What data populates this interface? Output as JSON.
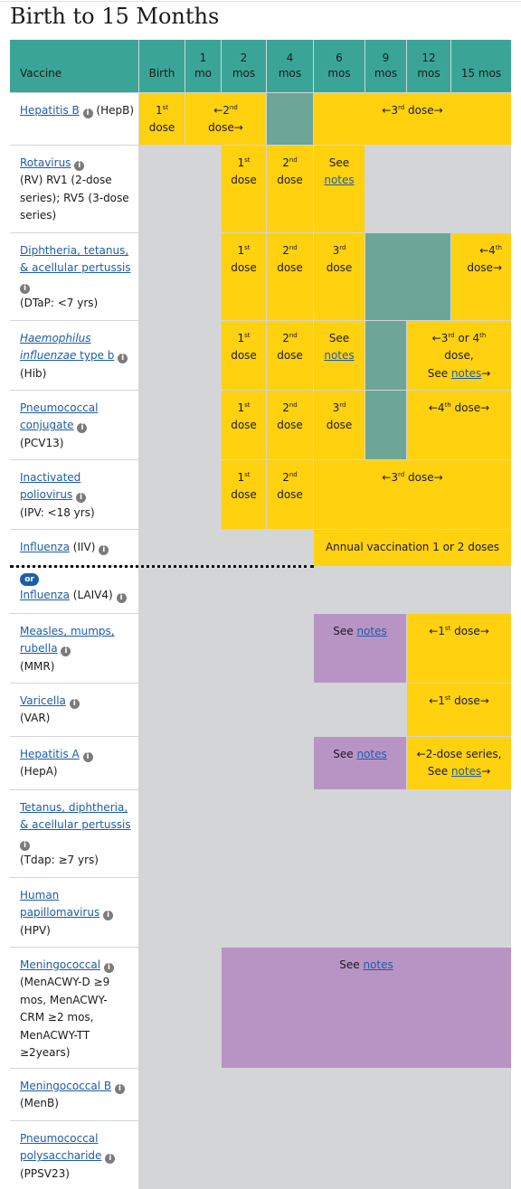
{
  "title": "Birth to 15 Months",
  "header": {
    "vaccine": "Vaccine",
    "birth": "Birth",
    "m1": [
      "1",
      "mo"
    ],
    "m2": [
      "2",
      "mos"
    ],
    "m4": [
      "4",
      "mos"
    ],
    "m6": [
      "6",
      "mos"
    ],
    "m9": [
      "9",
      "mos"
    ],
    "m12": [
      "12",
      "mos"
    ],
    "m15": "15 mos"
  },
  "icons": {
    "info": "info-circle-icon",
    "info_glyph": "i"
  },
  "colors": {
    "header": "#3aa597",
    "recommended": "#ffd10f",
    "catchup": "#6da598",
    "notes": "#b894c5",
    "none": "#d4d5d6"
  },
  "rows": {
    "hepb": {
      "name": "Hepatitis B",
      "abbr": "(HepB)"
    },
    "rota": {
      "name": "Rotavirus",
      "l1": "(RV) RV1 (2-dose",
      "l2": "series); RV5 (3-dose",
      "l3": "series)"
    },
    "dtap": {
      "l1": "Diphtheria, tetanus,",
      "l2": "& acellular pertussis",
      "abbr": "(DTaP: <7 yrs)"
    },
    "hib": {
      "l1": "Haemophilus",
      "l2a": "influenzae",
      "l2b": " type b",
      "abbr": "(Hib)"
    },
    "pcv": {
      "l1": "Pneumococcal",
      "l2": "conjugate",
      "abbr": "(PCV13)"
    },
    "ipv": {
      "l1": "Inactivated",
      "l2": "poliovirus",
      "abbr": "(IPV: <18 yrs)"
    },
    "iiv": {
      "name": "Influenza",
      "abbr": " (IIV)"
    },
    "or": "or",
    "laiv": {
      "name": "Influenza",
      "abbr": " (LAIV4)"
    },
    "mmr": {
      "l1": "Measles, mumps,",
      "l2": "rubella",
      "abbr": "(MMR)"
    },
    "var": {
      "name": "Varicella",
      "abbr": "(VAR)"
    },
    "hepa": {
      "name": "Hepatitis A",
      "abbr": "(HepA)"
    },
    "tdap": {
      "l1": "Tetanus, diphtheria,",
      "l2": "& acellular pertussis",
      "abbr": "(Tdap: ≥7 yrs)"
    },
    "hpv": {
      "l1": "Human",
      "l2": "papillomavirus",
      "abbr": "(HPV)"
    },
    "menacwy": {
      "name": "Meningococcal",
      "l1": "(MenACWY-D ≥9",
      "l2": "mos, MenACWY-",
      "l3": "CRM ≥2 mos,",
      "l4": "MenACWY-TT",
      "l5": "≥2years)"
    },
    "menb": {
      "name": "Meningococcal B",
      "abbr": "(MenB)"
    },
    "ppsv": {
      "l1": "Pneumococcal",
      "l2": "polysaccharide",
      "abbr": "(PPSV23)"
    }
  },
  "doses": {
    "st": "st",
    "nd": "nd",
    "rd": "rd",
    "th": "th",
    "dose": "dose",
    "first_n": "1",
    "second_n": "2",
    "third_n": "3",
    "fourth_n": "4",
    "arrow_l": "←",
    "arrow_r": "→",
    "second_range": "2",
    "third_range": "3",
    "fourth_range": "4",
    "dose_word": " dose",
    "see": "See",
    "notes": "notes",
    "see_space": "See ",
    "or_4": " or 4",
    "dose_comma": "dose,",
    "annual": "Annual vaccination 1 or 2 doses",
    "two_dose_series": "←2-dose series,"
  }
}
